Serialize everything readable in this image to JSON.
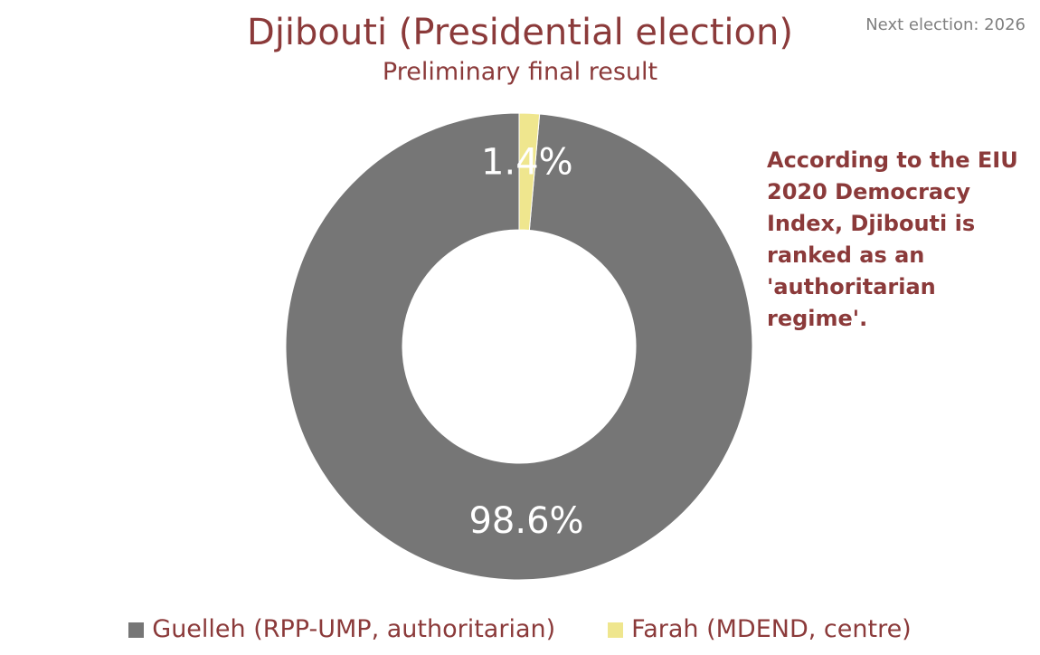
{
  "chart_data": {
    "type": "pie",
    "title": "Djibouti (Presidential election)",
    "subtitle": "Preliminary final result",
    "note": "Next election: 2026",
    "annotation": "According to the EIU 2020 Democracy Index, Djibouti is ranked as an 'authoritarian regime'.",
    "donut": true,
    "legend_position": "bottom",
    "series": [
      {
        "name": "Guelleh (RPP-UMP, authoritarian)",
        "value": 98.6,
        "label": "98.6%",
        "color": "#767676"
      },
      {
        "name": "Farah (MDEND, centre)",
        "value": 1.4,
        "label": "1.4%",
        "color": "#efe68e"
      }
    ]
  }
}
